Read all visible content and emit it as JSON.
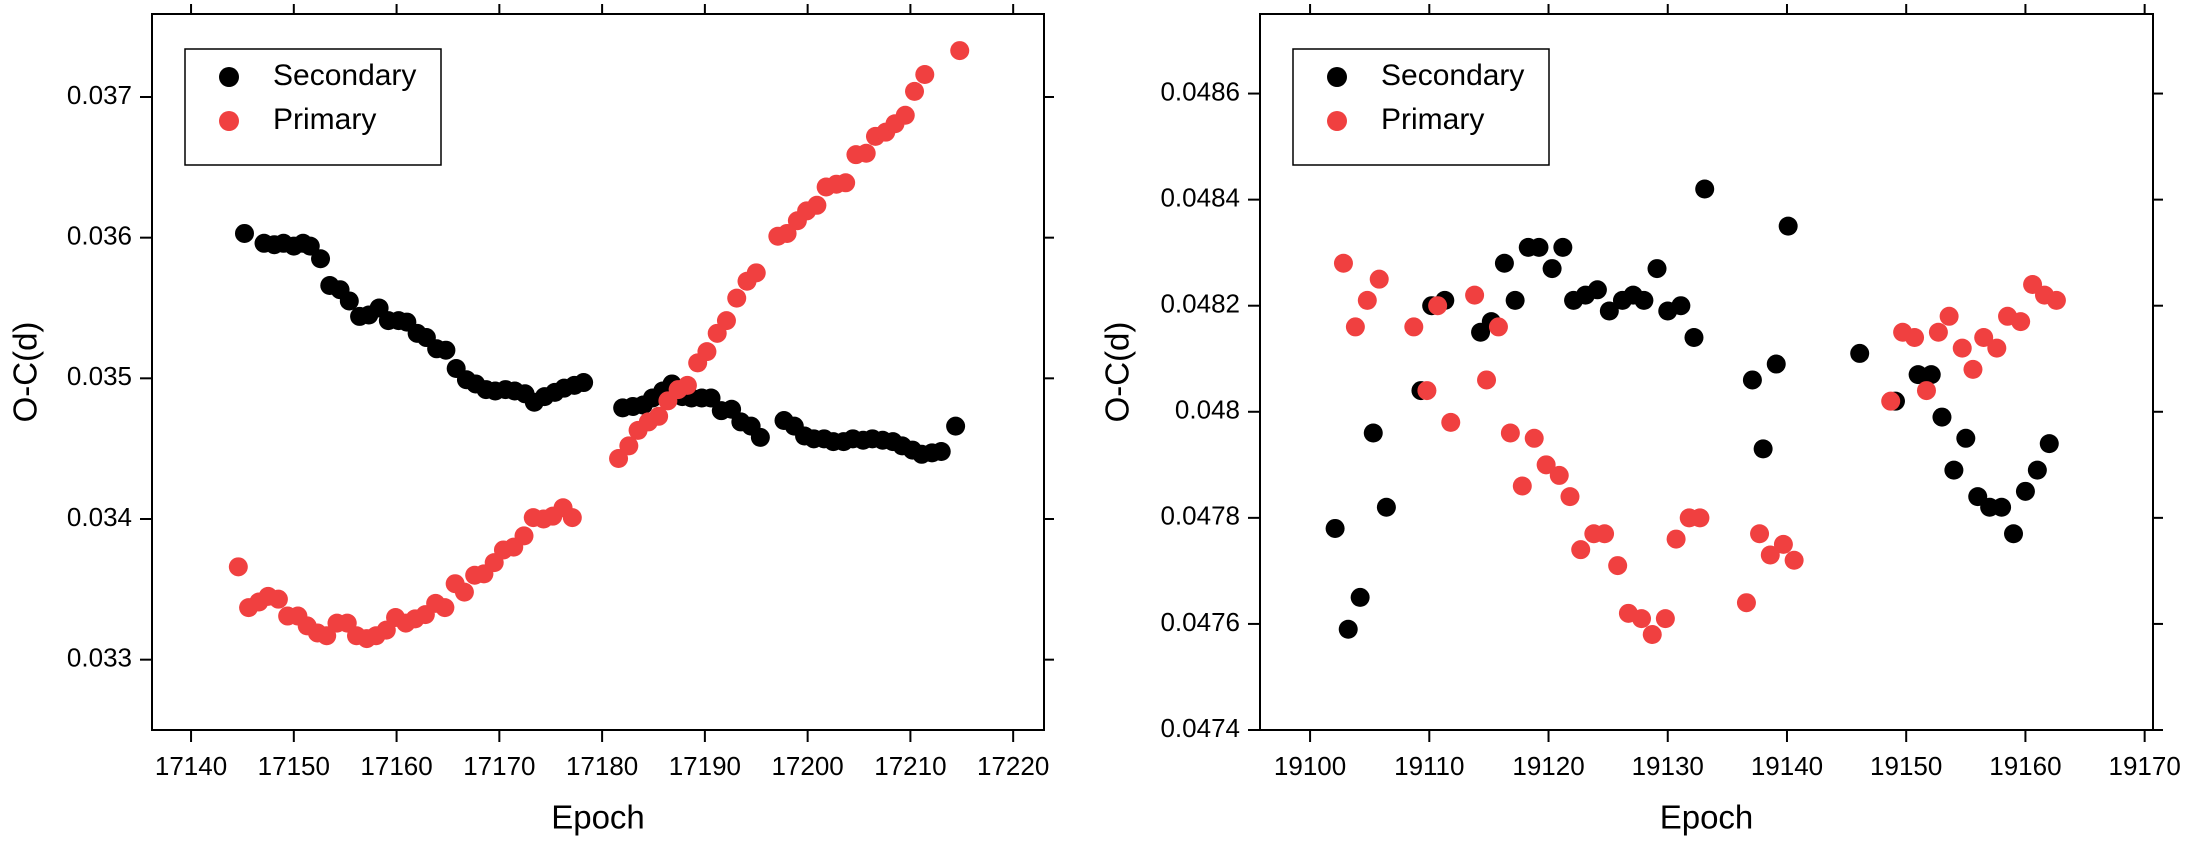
{
  "chart_data": [
    {
      "type": "scatter",
      "xlabel": "Epoch",
      "ylabel": "O-C(d)",
      "xlim": [
        17136.2,
        17223
      ],
      "ylim": [
        0.0325,
        0.03759
      ],
      "xticks": [
        17140,
        17150,
        17160,
        17170,
        17180,
        17190,
        17200,
        17210,
        17220
      ],
      "yticks": [
        0.033,
        0.034,
        0.035,
        0.036,
        0.037
      ],
      "legend": "upper left",
      "series": [
        {
          "name": "Secondary",
          "color": "#000000",
          "x": [
            17145.2,
            17147.1,
            17148.1,
            17149.0,
            17150.0,
            17150.9,
            17151.6,
            17152.6,
            17153.5,
            17154.5,
            17155.4,
            17156.4,
            17157.3,
            17158.3,
            17159.2,
            17160.2,
            17161.0,
            17162.0,
            17162.9,
            17163.9,
            17164.8,
            17165.8,
            17166.8,
            17167.7,
            17168.7,
            17169.6,
            17170.6,
            17171.5,
            17172.5,
            17173.4,
            17174.4,
            17175.4,
            17176.3,
            17177.3,
            17178.2,
            17182.0,
            17183.0,
            17184.0,
            17184.9,
            17185.9,
            17186.8,
            17187.8,
            17188.7,
            17189.7,
            17190.6,
            17191.6,
            17192.6,
            17193.5,
            17194.5,
            17195.4,
            17197.7,
            17198.7,
            17199.7,
            17200.6,
            17201.6,
            17202.5,
            17203.5,
            17204.4,
            17205.4,
            17206.3,
            17207.3,
            17208.3,
            17209.2,
            17210.2,
            17211.1,
            17212.1,
            17213.0,
            17214.4
          ],
          "values": [
            0.03603,
            0.03596,
            0.03595,
            0.03596,
            0.03594,
            0.03596,
            0.03594,
            0.03585,
            0.03566,
            0.03563,
            0.03555,
            0.03544,
            0.03545,
            0.0355,
            0.03541,
            0.03541,
            0.0354,
            0.03532,
            0.03529,
            0.03521,
            0.0352,
            0.03507,
            0.03499,
            0.03496,
            0.03492,
            0.03491,
            0.03492,
            0.03491,
            0.03489,
            0.03483,
            0.03487,
            0.0349,
            0.03493,
            0.03495,
            0.03497,
            0.03479,
            0.0348,
            0.03481,
            0.03486,
            0.03491,
            0.03496,
            0.03487,
            0.03486,
            0.03486,
            0.03486,
            0.03477,
            0.03478,
            0.03469,
            0.03466,
            0.03458,
            0.0347,
            0.03466,
            0.03459,
            0.03457,
            0.03457,
            0.03455,
            0.03455,
            0.03457,
            0.03456,
            0.03457,
            0.03456,
            0.03455,
            0.03452,
            0.03449,
            0.03446,
            0.03447,
            0.03448,
            0.03466
          ]
        },
        {
          "name": "Primary",
          "color": "#f04040",
          "x": [
            17144.6,
            17145.6,
            17146.6,
            17147.5,
            17148.5,
            17149.4,
            17150.4,
            17151.3,
            17152.3,
            17153.2,
            17154.2,
            17155.2,
            17156.1,
            17157.1,
            17158.0,
            17159.0,
            17159.9,
            17160.9,
            17161.8,
            17162.8,
            17163.8,
            17164.7,
            17165.7,
            17166.6,
            17167.6,
            17168.5,
            17169.5,
            17170.4,
            17171.4,
            17172.4,
            17173.3,
            17174.3,
            17175.2,
            17176.2,
            17177.1,
            17181.6,
            17182.6,
            17183.5,
            17184.5,
            17185.5,
            17186.4,
            17187.4,
            17188.3,
            17189.3,
            17190.2,
            17191.2,
            17192.1,
            17193.1,
            17194.1,
            17195.0,
            17197.1,
            17198.0,
            17199.0,
            17199.9,
            17200.9,
            17201.8,
            17202.8,
            17203.7,
            17204.7,
            17205.7,
            17206.6,
            17207.6,
            17208.5,
            17209.5,
            17210.4,
            17211.4,
            17214.8
          ],
          "values": [
            0.03366,
            0.03337,
            0.03341,
            0.03345,
            0.03343,
            0.03331,
            0.03331,
            0.03324,
            0.03319,
            0.03317,
            0.03326,
            0.03326,
            0.03317,
            0.03315,
            0.03317,
            0.03321,
            0.0333,
            0.03326,
            0.03329,
            0.03332,
            0.0334,
            0.03337,
            0.03354,
            0.03348,
            0.0336,
            0.03361,
            0.03369,
            0.03378,
            0.0338,
            0.03388,
            0.03401,
            0.034,
            0.03402,
            0.03408,
            0.03401,
            0.03443,
            0.03452,
            0.03463,
            0.03469,
            0.03473,
            0.03484,
            0.03492,
            0.03495,
            0.03511,
            0.03519,
            0.03532,
            0.03541,
            0.03557,
            0.03569,
            0.03575,
            0.03601,
            0.03603,
            0.03612,
            0.03619,
            0.03623,
            0.03636,
            0.03638,
            0.03639,
            0.03659,
            0.0366,
            0.03672,
            0.03675,
            0.03681,
            0.03687,
            0.03704,
            0.03716,
            0.03733
          ]
        }
      ]
    },
    {
      "type": "scatter",
      "xlabel": "Epoch",
      "ylabel": "O-C(d)",
      "xlim": [
        19095.8,
        19170.7
      ],
      "ylim": [
        0.0474,
        0.04875
      ],
      "xticks": [
        19100,
        19110,
        19120,
        19130,
        19140,
        19150,
        19160,
        19170
      ],
      "yticks": [
        0.0474,
        0.0476,
        0.0478,
        0.048,
        0.0482,
        0.0484,
        0.0486
      ],
      "legend": "upper left",
      "series": [
        {
          "name": "Secondary",
          "color": "#000000",
          "x": [
            19102.1,
            19103.2,
            19104.2,
            19105.3,
            19106.4,
            19109.3,
            19110.2,
            19111.3,
            19114.3,
            19115.2,
            19116.3,
            19117.2,
            19118.3,
            19119.2,
            19120.3,
            19121.2,
            19122.1,
            19123.1,
            19124.1,
            19125.1,
            19126.2,
            19127.1,
            19128.0,
            19129.1,
            19130.0,
            19131.1,
            19132.2,
            19133.1,
            19137.1,
            19138.0,
            19139.1,
            19140.1,
            19146.1,
            19149.1,
            19151.0,
            19152.1,
            19153.0,
            19154.0,
            19155.0,
            19156.0,
            19157.0,
            19158.0,
            19159.0,
            19160.0,
            19161.0,
            19162.0
          ],
          "values": [
            0.04778,
            0.04759,
            0.04765,
            0.04796,
            0.04782,
            0.04804,
            0.0482,
            0.04821,
            0.04815,
            0.04817,
            0.04828,
            0.04821,
            0.04831,
            0.04831,
            0.04827,
            0.04831,
            0.04821,
            0.04822,
            0.04823,
            0.04819,
            0.04821,
            0.04822,
            0.04821,
            0.04827,
            0.04819,
            0.0482,
            0.04814,
            0.04842,
            0.04806,
            0.04793,
            0.04809,
            0.04835,
            0.04811,
            0.04802,
            0.04807,
            0.04807,
            0.04799,
            0.04789,
            0.04795,
            0.04784,
            0.04782,
            0.04782,
            0.04777,
            0.04785,
            0.04789,
            0.04794
          ]
        },
        {
          "name": "Primary",
          "color": "#f04040",
          "x": [
            19102.8,
            19103.8,
            19104.8,
            19105.8,
            19108.7,
            19109.8,
            19110.7,
            19111.8,
            19113.8,
            19114.8,
            19115.8,
            19116.8,
            19117.8,
            19118.8,
            19119.8,
            19120.9,
            19121.8,
            19122.7,
            19123.8,
            19124.7,
            19125.8,
            19126.7,
            19127.8,
            19128.7,
            19129.8,
            19130.7,
            19131.8,
            19132.7,
            19136.6,
            19137.7,
            19138.6,
            19139.7,
            19140.6,
            19148.7,
            19149.7,
            19150.7,
            19151.7,
            19152.7,
            19153.6,
            19154.7,
            19155.6,
            19156.5,
            19157.6,
            19158.5,
            19159.6,
            19160.6,
            19161.6,
            19162.6
          ],
          "values": [
            0.04828,
            0.04816,
            0.04821,
            0.04825,
            0.04816,
            0.04804,
            0.0482,
            0.04798,
            0.04822,
            0.04806,
            0.04816,
            0.04796,
            0.04786,
            0.04795,
            0.0479,
            0.04788,
            0.04784,
            0.04774,
            0.04777,
            0.04777,
            0.04771,
            0.04762,
            0.04761,
            0.04758,
            0.04761,
            0.04776,
            0.0478,
            0.0478,
            0.04764,
            0.04777,
            0.04773,
            0.04775,
            0.04772,
            0.04802,
            0.04815,
            0.04814,
            0.04804,
            0.04815,
            0.04818,
            0.04812,
            0.04808,
            0.04814,
            0.04812,
            0.04818,
            0.04817,
            0.04824,
            0.04822,
            0.04821
          ]
        }
      ]
    }
  ]
}
